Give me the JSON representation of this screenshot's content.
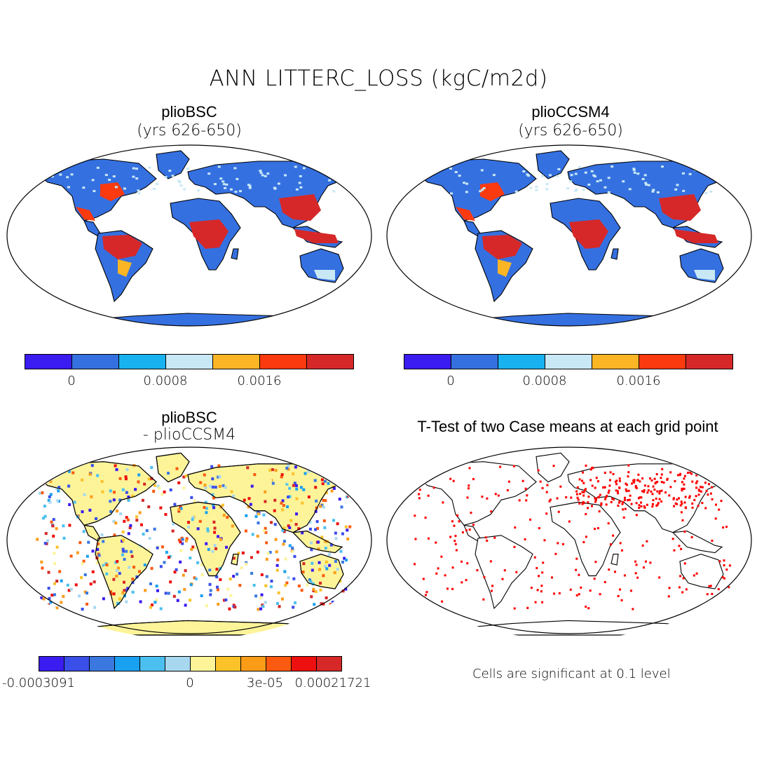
{
  "title": "ANN LITTERC_LOSS (kgC/m2d)",
  "panels": [
    {
      "title": "plioBSC",
      "subtitle": "(yrs 626-650)"
    },
    {
      "title": "plioCCSM4",
      "subtitle": "(yrs 626-650)"
    },
    {
      "title": "plioBSC",
      "subtitle": "- plioCCSM4"
    },
    {
      "title": "T-Test of two Case means at each grid point",
      "subtitle": ""
    }
  ],
  "colorbars": {
    "absolute": {
      "colors": [
        "#3a1cf0",
        "#3570e0",
        "#18b2f0",
        "#c8e8f5",
        "#fbb525",
        "#fb3a10",
        "#d62828"
      ],
      "labels": [
        "0",
        "0.0008",
        "0.0016"
      ]
    },
    "difference": {
      "colors": [
        "#3a1cf0",
        "#3a4ee8",
        "#3a78e0",
        "#1aa0f0",
        "#4bc0f0",
        "#a8d8f0",
        "#fdf49a",
        "#fbc22a",
        "#fb9c18",
        "#fb5a10",
        "#ee1010",
        "#d62828"
      ],
      "labels": [
        "-0.0003091",
        "0",
        "3e-05",
        "0.00021721"
      ]
    }
  },
  "note": "Cells are significant at 0.1 level",
  "map_colors": {
    "ocean": "#ffffff",
    "land_base": "#3570e0",
    "hot": "#d62828",
    "warm": "#fb3a10",
    "mid": "#fbb525",
    "light": "#c8e8f5",
    "diff_base": "#fdf49a",
    "sig": "#ff0000"
  }
}
